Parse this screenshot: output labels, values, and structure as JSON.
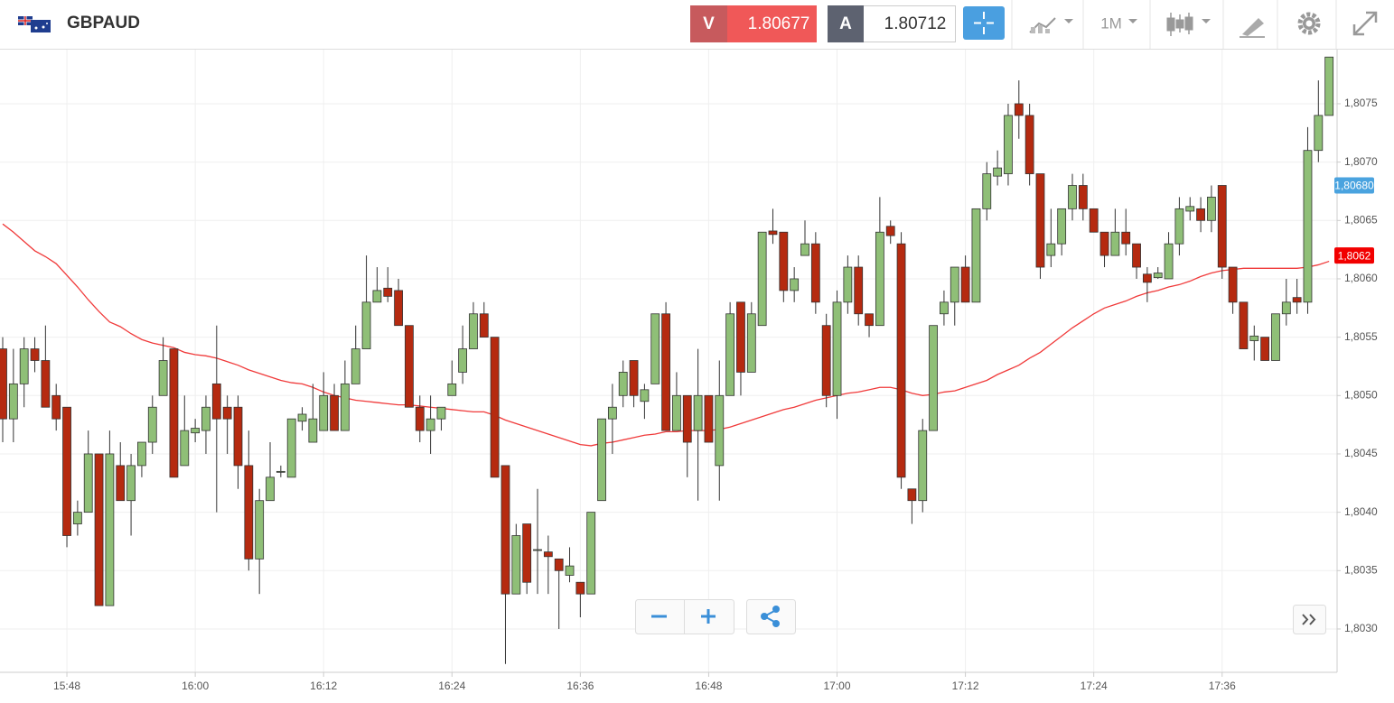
{
  "header": {
    "symbol": "GBPAUD",
    "sell_label": "V",
    "sell_price": "1.80677",
    "buy_label": "A",
    "buy_price": "1.80712",
    "timeframe": "1M"
  },
  "chart_data": {
    "type": "candlestick",
    "up_color": "#8fbf77",
    "down_color": "#b52a10",
    "categories": [
      null,
      null,
      null,
      null,
      null,
      null,
      "15:48",
      null,
      null,
      null,
      null,
      null,
      null,
      null,
      null,
      null,
      null,
      null,
      "16:00",
      null,
      null,
      null,
      null,
      null,
      null,
      null,
      null,
      null,
      null,
      null,
      "16:12",
      null,
      null,
      null,
      null,
      null,
      null,
      null,
      null,
      null,
      null,
      null,
      "16:24",
      null,
      null,
      null,
      null,
      null,
      null,
      null,
      null,
      null,
      null,
      null,
      "16:36",
      null,
      null,
      null,
      null,
      null,
      null,
      null,
      null,
      null,
      null,
      null,
      "16:48",
      null,
      null,
      null,
      null,
      null,
      null,
      null,
      null,
      null,
      null,
      null,
      "17:00",
      null,
      null,
      null,
      null,
      null,
      null,
      null,
      null,
      null,
      null,
      null,
      "17:12",
      null,
      null,
      null,
      null,
      null,
      null,
      null,
      null,
      null,
      null,
      null,
      "17:24",
      null,
      null,
      null,
      null,
      null,
      null,
      null,
      null,
      null,
      null,
      null,
      "17:36",
      null,
      null,
      null,
      null,
      null,
      null,
      null,
      null,
      null,
      null
    ],
    "open": [
      1.8054,
      1.8048,
      1.8051,
      1.8054,
      1.8053,
      1.805,
      1.8049,
      1.8039,
      1.804,
      1.8045,
      1.8032,
      1.8044,
      1.8041,
      1.8044,
      1.8046,
      1.805,
      1.8054,
      1.8044,
      1.80468,
      1.8047,
      1.8051,
      1.8049,
      1.8049,
      1.8044,
      1.8036,
      1.8041,
      1.80435,
      1.8043,
      1.80478,
      1.8046,
      1.8047,
      1.805,
      1.8047,
      1.8051,
      1.8054,
      1.8058,
      1.80592,
      1.8059,
      1.8056,
      1.8049,
      1.8047,
      1.8048,
      1.805,
      1.8052,
      1.8054,
      1.8057,
      1.8055,
      1.8044,
      1.8033,
      1.8039,
      1.80368,
      1.80366,
      1.8036,
      1.80346,
      1.8034,
      1.8033,
      1.8041,
      1.8048,
      1.805,
      1.8053,
      1.80495,
      1.8051,
      1.8057,
      1.8047,
      1.805,
      1.8047,
      1.805,
      1.8044,
      1.805,
      1.8058,
      1.8052,
      1.8056,
      1.80641,
      1.8064,
      1.8059,
      1.8062,
      1.8063,
      1.8056,
      1.805,
      1.8058,
      1.8061,
      1.8057,
      1.8056,
      1.80645,
      1.8063,
      1.8042,
      1.8041,
      1.8047,
      1.8057,
      1.8058,
      1.8061,
      1.8058,
      1.8066,
      1.80688,
      1.8069,
      1.8075,
      1.8074,
      1.8069,
      1.8062,
      1.8063,
      1.8066,
      1.8068,
      1.8066,
      1.8064,
      1.8062,
      1.8064,
      1.8063,
      1.80604,
      1.80601,
      1.806,
      1.8063,
      1.80658,
      1.8066,
      1.8065,
      1.8068,
      1.8061,
      1.8058,
      1.80547,
      1.8055,
      1.8053,
      1.8057,
      1.80584,
      1.8058,
      1.8071,
      1.8074
    ],
    "high": [
      1.8055,
      1.8054,
      1.8055,
      1.8055,
      1.8056,
      1.8051,
      1.8049,
      1.8041,
      1.8047,
      1.8045,
      1.8047,
      1.8046,
      1.8045,
      1.8046,
      1.805,
      1.8055,
      1.8054,
      1.805,
      1.8048,
      1.805,
      1.8056,
      1.805,
      1.805,
      1.8047,
      1.8042,
      1.8046,
      1.8044,
      1.8048,
      1.8049,
      1.8051,
      1.8052,
      1.8051,
      1.8053,
      1.8056,
      1.8062,
      1.8061,
      1.8061,
      1.806,
      1.8056,
      1.805,
      1.805,
      1.8049,
      1.8053,
      1.8056,
      1.8058,
      1.8058,
      1.8055,
      1.8044,
      1.8039,
      1.8039,
      1.8042,
      1.8038,
      1.8036,
      1.8037,
      1.8034,
      1.804,
      1.8048,
      1.8051,
      1.8053,
      1.8053,
      1.8051,
      1.8057,
      1.8058,
      1.8052,
      1.805,
      1.8054,
      1.805,
      1.8053,
      1.8058,
      1.8058,
      1.8058,
      1.8064,
      1.8066,
      1.8064,
      1.8061,
      1.8065,
      1.8064,
      1.8057,
      1.8059,
      1.8062,
      1.8062,
      1.8057,
      1.8067,
      1.8065,
      1.8064,
      1.8042,
      1.8048,
      1.8056,
      1.8059,
      1.8061,
      1.8062,
      1.8066,
      1.807,
      1.8071,
      1.8075,
      1.8077,
      1.8075,
      1.8069,
      1.8066,
      1.8066,
      1.8069,
      1.8069,
      1.8066,
      1.8064,
      1.8066,
      1.8066,
      1.8063,
      1.8061,
      1.8061,
      1.8064,
      1.8067,
      1.8067,
      1.8067,
      1.8068,
      1.8068,
      1.8061,
      1.8058,
      1.8056,
      1.8055,
      1.8057,
      1.806,
      1.806,
      1.8073,
      1.8077,
      1.8079
    ],
    "low": [
      1.8046,
      1.8046,
      1.8049,
      1.8052,
      1.8049,
      1.8047,
      1.8037,
      1.8038,
      1.804,
      1.8032,
      1.8032,
      1.8041,
      1.8038,
      1.8043,
      1.8045,
      1.805,
      1.8043,
      1.8044,
      1.8046,
      1.8045,
      1.804,
      1.8045,
      1.8042,
      1.8035,
      1.8033,
      1.8041,
      1.8043,
      1.8043,
      1.8047,
      1.8046,
      1.8047,
      1.8047,
      1.8047,
      1.8051,
      1.8054,
      1.8058,
      1.8058,
      1.8056,
      1.8049,
      1.8046,
      1.8045,
      1.8047,
      1.805,
      1.8051,
      1.8054,
      1.8055,
      1.8043,
      1.8027,
      1.8033,
      1.8033,
      1.8033,
      1.8033,
      1.803,
      1.8034,
      1.8031,
      1.8033,
      1.8041,
      1.8045,
      1.8049,
      1.8049,
      1.8048,
      1.8051,
      1.8047,
      1.8047,
      1.8043,
      1.8041,
      1.8046,
      1.8041,
      1.805,
      1.805,
      1.8052,
      1.8056,
      1.8063,
      1.8058,
      1.8058,
      1.8062,
      1.8057,
      1.8049,
      1.8048,
      1.8057,
      1.8056,
      1.8055,
      1.8056,
      1.8063,
      1.8042,
      1.8039,
      1.804,
      1.8047,
      1.8056,
      1.8056,
      1.8058,
      1.8058,
      1.8065,
      1.8068,
      1.8068,
      1.8072,
      1.8068,
      1.806,
      1.8061,
      1.8062,
      1.8065,
      1.8065,
      1.8064,
      1.8061,
      1.8062,
      1.8062,
      1.806,
      1.8058,
      1.806,
      1.806,
      1.8062,
      1.8065,
      1.8064,
      1.8064,
      1.806,
      1.8057,
      1.8054,
      1.8053,
      1.8053,
      1.8053,
      1.8056,
      1.8057,
      1.8057,
      1.807,
      1.8074
    ],
    "close": [
      1.8048,
      1.8051,
      1.8054,
      1.8053,
      1.8049,
      1.8048,
      1.8038,
      1.804,
      1.8045,
      1.8032,
      1.8045,
      1.8041,
      1.8044,
      1.8046,
      1.8049,
      1.8053,
      1.8043,
      1.8047,
      1.80472,
      1.8049,
      1.8048,
      1.8048,
      1.8044,
      1.8036,
      1.8041,
      1.8043,
      1.80435,
      1.8048,
      1.80484,
      1.8048,
      1.805,
      1.8047,
      1.8051,
      1.8054,
      1.8058,
      1.8059,
      1.80585,
      1.8056,
      1.8049,
      1.8047,
      1.8048,
      1.8049,
      1.8051,
      1.8054,
      1.8057,
      1.8055,
      1.8043,
      1.8033,
      1.8038,
      1.8034,
      1.80368,
      1.80362,
      1.8035,
      1.80354,
      1.8033,
      1.804,
      1.8048,
      1.8049,
      1.8052,
      1.805,
      1.80505,
      1.8057,
      1.8047,
      1.805,
      1.8046,
      1.805,
      1.8046,
      1.805,
      1.8057,
      1.8052,
      1.8057,
      1.8064,
      1.80638,
      1.8059,
      1.806,
      1.8063,
      1.8058,
      1.805,
      1.8058,
      1.8061,
      1.8057,
      1.8056,
      1.8064,
      1.80637,
      1.8043,
      1.8041,
      1.8047,
      1.8056,
      1.8058,
      1.8061,
      1.8058,
      1.8066,
      1.8069,
      1.80695,
      1.8074,
      1.8074,
      1.8069,
      1.8061,
      1.8063,
      1.8066,
      1.8068,
      1.8066,
      1.8064,
      1.8062,
      1.8064,
      1.8063,
      1.8061,
      1.80597,
      1.80605,
      1.8063,
      1.8066,
      1.80662,
      1.8065,
      1.8067,
      1.8061,
      1.8058,
      1.8054,
      1.80551,
      1.8053,
      1.8057,
      1.8058,
      1.8058,
      1.8071,
      1.8074,
      1.8079
    ],
    "overlays": [
      {
        "type": "line",
        "color": "#f03a3a",
        "values": [
          1.80647,
          1.8064,
          1.80632,
          1.80624,
          1.80619,
          1.80613,
          1.80603,
          1.80593,
          1.80582,
          1.80572,
          1.80563,
          1.80559,
          1.80553,
          1.80548,
          1.80545,
          1.80543,
          1.80541,
          1.80537,
          1.80535,
          1.80534,
          1.80532,
          1.80529,
          1.80526,
          1.80522,
          1.80519,
          1.80516,
          1.80513,
          1.80511,
          1.8051,
          1.80507,
          1.80503,
          1.805,
          1.80498,
          1.80496,
          1.80495,
          1.80494,
          1.80493,
          1.80492,
          1.80492,
          1.80491,
          1.8049,
          1.80489,
          1.80488,
          1.80487,
          1.80486,
          1.80486,
          1.80483,
          1.80479,
          1.80476,
          1.80473,
          1.8047,
          1.80467,
          1.80464,
          1.80461,
          1.80458,
          1.80457,
          1.80459,
          1.8046,
          1.80462,
          1.80464,
          1.80466,
          1.80467,
          1.80469,
          1.80469,
          1.8047,
          1.8047,
          1.8047,
          1.80471,
          1.80473,
          1.80476,
          1.80479,
          1.80482,
          1.80485,
          1.80488,
          1.8049,
          1.80493,
          1.80496,
          1.80498,
          1.805,
          1.80502,
          1.80503,
          1.80505,
          1.80507,
          1.80507,
          1.80505,
          1.80502,
          1.805,
          1.80501,
          1.80503,
          1.80504,
          1.80507,
          1.8051,
          1.80513,
          1.80518,
          1.80522,
          1.80526,
          1.80532,
          1.80537,
          1.80544,
          1.80551,
          1.80558,
          1.80564,
          1.8057,
          1.80575,
          1.80578,
          1.80581,
          1.80585,
          1.80588,
          1.8059,
          1.80593,
          1.80595,
          1.80598,
          1.80602,
          1.80605,
          1.80607,
          1.80608,
          1.80609,
          1.80609,
          1.80609,
          1.80609,
          1.80609,
          1.80609,
          1.8061,
          1.80612,
          1.80615
        ]
      }
    ],
    "ylim": [
      1.8026,
      1.808
    ],
    "yticks": [
      {
        "value": 1.803,
        "label": "1,8030"
      },
      {
        "value": 1.8035,
        "label": "1,8035"
      },
      {
        "value": 1.804,
        "label": "1,8040"
      },
      {
        "value": 1.8045,
        "label": "1,8045"
      },
      {
        "value": 1.805,
        "label": "1,8050"
      },
      {
        "value": 1.8055,
        "label": "1,8055"
      },
      {
        "value": 1.806,
        "label": "1,8060"
      },
      {
        "value": 1.8065,
        "label": "1,8065"
      },
      {
        "value": 1.807,
        "label": "1,8070"
      },
      {
        "value": 1.8075,
        "label": "1,8075"
      }
    ],
    "grid": true,
    "price_tags": [
      {
        "value": 1.8068,
        "label": "1,80680",
        "color": "#4aa3df"
      },
      {
        "value": 1.8062,
        "label": "1,8062",
        "color": "#f20000"
      }
    ]
  }
}
